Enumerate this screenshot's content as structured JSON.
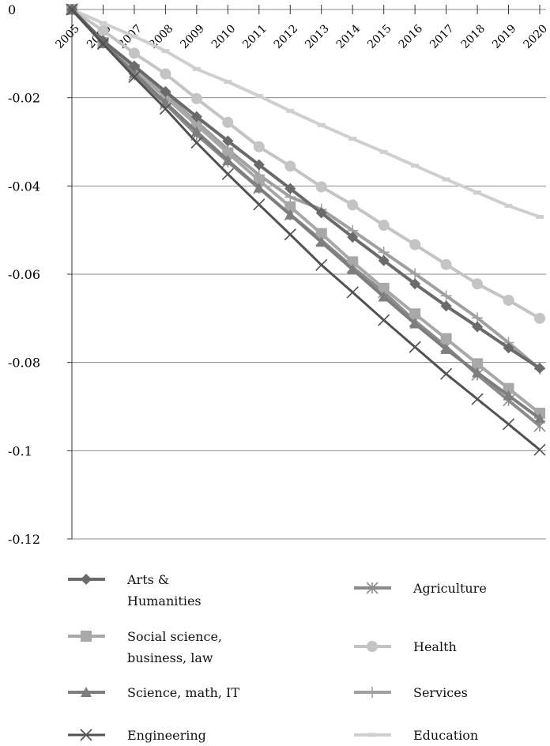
{
  "chart_data": {
    "type": "line",
    "title": "",
    "xlabel": "",
    "ylabel": "",
    "x": [
      "2005",
      "2006",
      "2007",
      "2008",
      "2009",
      "2010",
      "2011",
      "2012",
      "2013",
      "2014",
      "2015",
      "2016",
      "2017",
      "2018",
      "2019",
      "2020"
    ],
    "ylim": [
      -0.12,
      0
    ],
    "yticks": [
      "0",
      "-0.02",
      "-0.04",
      "-0.06",
      "-0.08",
      "-0.1",
      "-0.12"
    ],
    "grid": "horizontal",
    "legend_position": "bottom",
    "series": [
      {
        "name": "Arts & Humanities",
        "label_lines": [
          "Arts &",
          "Humanities"
        ],
        "marker": "diamond",
        "color": "#6a6a6a",
        "width": 4,
        "values": [
          0,
          -0.0071,
          -0.0128,
          -0.0186,
          -0.0243,
          -0.0298,
          -0.0352,
          -0.0406,
          -0.0461,
          -0.0516,
          -0.0569,
          -0.0622,
          -0.0672,
          -0.0719,
          -0.0767,
          -0.0813
        ]
      },
      {
        "name": "Social science, business, law",
        "label_lines": [
          "Social science,",
          "business, law"
        ],
        "marker": "square",
        "color": "#a8a8a8",
        "width": 4,
        "values": [
          0,
          -0.0075,
          -0.0136,
          -0.0199,
          -0.0262,
          -0.0325,
          -0.0387,
          -0.0447,
          -0.0508,
          -0.0572,
          -0.0632,
          -0.069,
          -0.0746,
          -0.0803,
          -0.0859,
          -0.0915
        ]
      },
      {
        "name": "Science, math, IT",
        "label_lines": [
          "Science, math, IT"
        ],
        "marker": "triangle",
        "color": "#7e7e7e",
        "width": 4,
        "values": [
          0,
          -0.0077,
          -0.0144,
          -0.0211,
          -0.0277,
          -0.0342,
          -0.0404,
          -0.0465,
          -0.0527,
          -0.0589,
          -0.0651,
          -0.0712,
          -0.077,
          -0.0823,
          -0.0875,
          -0.0927
        ]
      },
      {
        "name": "Engineering",
        "label_lines": [
          "Engineering"
        ],
        "marker": "x",
        "color": "#525252",
        "width": 3,
        "values": [
          0,
          -0.0078,
          -0.0153,
          -0.0225,
          -0.0302,
          -0.0373,
          -0.0442,
          -0.051,
          -0.0579,
          -0.0641,
          -0.0704,
          -0.0765,
          -0.0826,
          -0.0883,
          -0.094,
          -0.0998
        ]
      },
      {
        "name": "Agriculture",
        "label_lines": [
          "Agriculture"
        ],
        "marker": "asterisk",
        "color": "#8c8c8c",
        "width": 4,
        "values": [
          0,
          -0.0076,
          -0.0148,
          -0.0214,
          -0.0284,
          -0.0345,
          -0.0405,
          -0.0465,
          -0.0523,
          -0.0584,
          -0.0641,
          -0.0706,
          -0.0764,
          -0.0828,
          -0.0886,
          -0.0944
        ]
      },
      {
        "name": "Health",
        "label_lines": [
          "Health"
        ],
        "marker": "circle",
        "color": "#c4c4c4",
        "width": 4,
        "values": [
          0,
          -0.0048,
          -0.0099,
          -0.0146,
          -0.0202,
          -0.0256,
          -0.0311,
          -0.0355,
          -0.0402,
          -0.0443,
          -0.0489,
          -0.0533,
          -0.0578,
          -0.0622,
          -0.0659,
          -0.07
        ]
      },
      {
        "name": "Services",
        "label_lines": [
          "Services"
        ],
        "marker": "plus",
        "color": "#a0a0a0",
        "width": 4,
        "values": [
          0,
          -0.0071,
          -0.0132,
          -0.0193,
          -0.0255,
          -0.0317,
          -0.0375,
          -0.0425,
          -0.0453,
          -0.0501,
          -0.055,
          -0.0599,
          -0.0649,
          -0.0699,
          -0.0755,
          -0.0815
        ]
      },
      {
        "name": "Education",
        "label_lines": [
          "Education"
        ],
        "marker": "dash",
        "color": "#cfcfcf",
        "width": 4,
        "values": [
          0,
          -0.0031,
          -0.0061,
          -0.0094,
          -0.0135,
          -0.0164,
          -0.0196,
          -0.023,
          -0.0262,
          -0.0293,
          -0.0323,
          -0.0354,
          -0.0385,
          -0.0415,
          -0.0445,
          -0.047
        ]
      }
    ]
  }
}
